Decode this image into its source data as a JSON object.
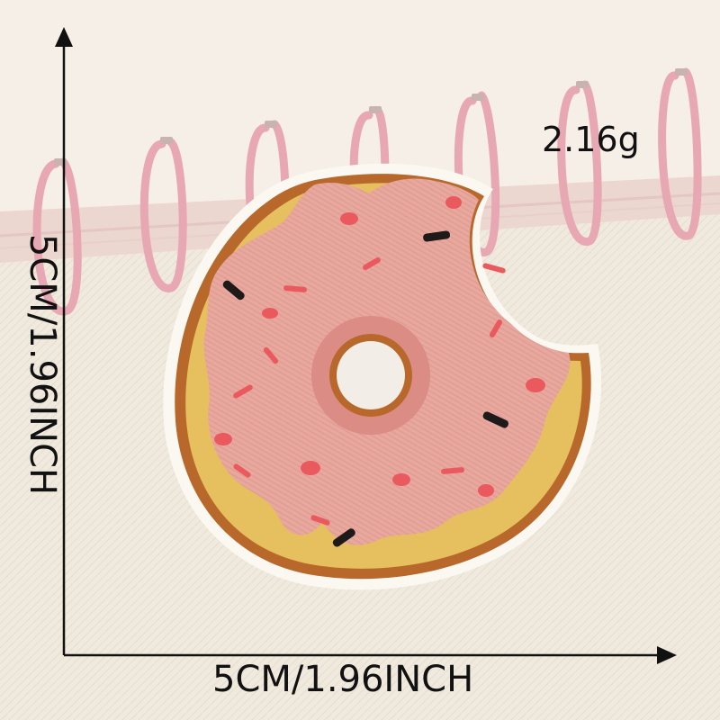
{
  "weight_label": "2.16g",
  "width_label": "5CM/1.96INCH",
  "height_label": "5CM/1.96INCH",
  "colors": {
    "background": "#f1ebe1",
    "notebook_page": "#f5eee6",
    "spiral_ring": "#e7a8b4",
    "frosting": "#e9a79d",
    "dough": "#e6bf5e",
    "crust": "#b7682a",
    "sprinkle_red": "#e9595e",
    "sprinkle_black": "#1e1a1a",
    "arrow": "#111111"
  },
  "icons": [
    "donut-patch",
    "spiral-notebook",
    "dimension-arrow"
  ]
}
